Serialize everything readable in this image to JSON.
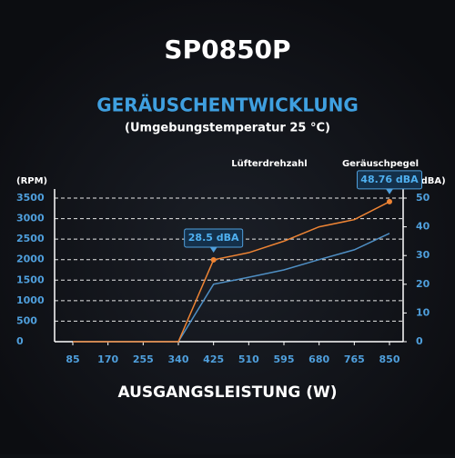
{
  "chart_data": {
    "type": "line",
    "title": "SP0850P",
    "subtitle": "GERÄUSCHENTWICKLUNG",
    "note": "(Umgebungstemperatur 25 °C)",
    "y_label": "(RPM)",
    "y2_label": "(dBA)",
    "x_label": "AUSGANGSLEISTUNG (W)",
    "categories": [
      "85",
      "170",
      "255",
      "340",
      "425",
      "510",
      "595",
      "680",
      "765",
      "850"
    ],
    "series": [
      {
        "name": "Lüfterdrehzahl",
        "color": "#4f8fc4",
        "values": [
          0,
          0,
          0,
          0,
          1400,
          1570,
          1750,
          2000,
          2240,
          2640
        ]
      },
      {
        "name": "Geräuschpegel",
        "color": "#ee8434",
        "axis": "y2",
        "values": [
          0,
          0,
          0,
          0,
          28.5,
          31,
          35,
          40,
          42.5,
          48.76
        ],
        "value_labels": [
          null,
          null,
          null,
          null,
          "28.5 dBA",
          null,
          null,
          null,
          null,
          "48.76 dBA"
        ]
      }
    ],
    "ylim": [
      0,
      3500
    ],
    "yticks": [
      0,
      500,
      1000,
      1500,
      2000,
      2500,
      3000,
      3500
    ],
    "y2lim": [
      0,
      50
    ],
    "y2ticks": [
      0,
      10,
      20,
      30,
      40,
      50
    ],
    "grid": true
  }
}
